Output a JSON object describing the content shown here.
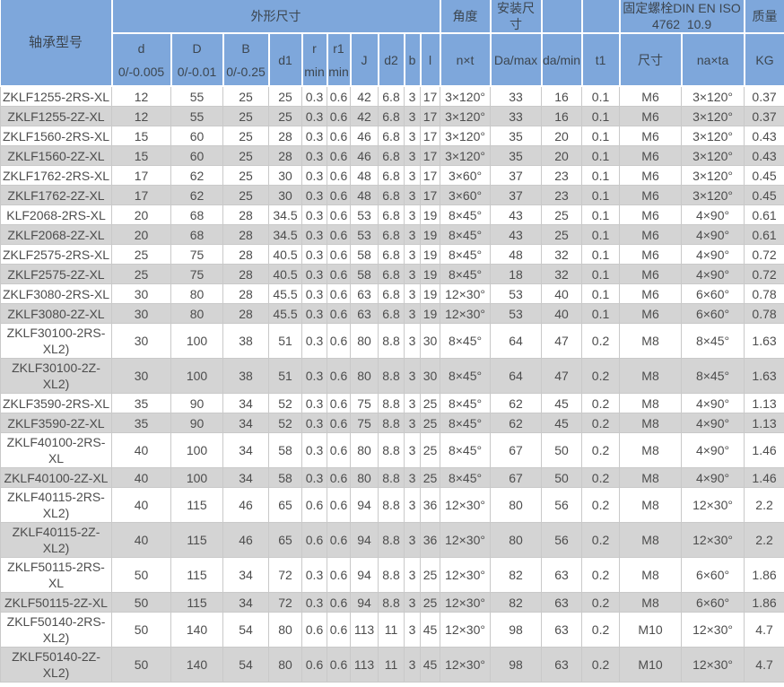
{
  "colors": {
    "header_bg": "#7EA7DB",
    "header_text": "#3C4650",
    "body_text": "#4D4D4D",
    "alt_row_bg": "#D4D4D4",
    "border_light": "#C9C9C9",
    "white": "#FFFFFF"
  },
  "table": {
    "header": {
      "model": "轴承型号",
      "dims_group": "外形尺寸",
      "angle_group": "角度",
      "mount_group": "安装尺寸",
      "blank1": "",
      "blank2": "",
      "bolt_group": "固定螺栓DIN EN ISO\n4762  10.9",
      "mass_group": "质量",
      "sub": [
        "d\n0/-0.005",
        "D\n0/-0.01",
        "B\n0/-0.25",
        "d1",
        "r\nmin",
        "r1\nmin",
        "J",
        "d2",
        "b",
        "l",
        "n×t",
        "Da/max",
        "da/min",
        "t1",
        "尺寸",
        "na×ta",
        "KG"
      ]
    },
    "rows": [
      [
        "ZKLF1255-2RS-XL",
        "12",
        "55",
        "25",
        "25",
        "0.3",
        "0.6",
        "42",
        "6.8",
        "3",
        "17",
        "3×120°",
        "33",
        "16",
        "0.1",
        "M6",
        "3×120°",
        "0.37"
      ],
      [
        "ZKLF1255-2Z-XL",
        "12",
        "55",
        "25",
        "25",
        "0.3",
        "0.6",
        "42",
        "6.8",
        "3",
        "17",
        "3×120°",
        "33",
        "16",
        "0.1",
        "M6",
        "3×120°",
        "0.37"
      ],
      [
        "ZKLF1560-2RS-XL",
        "15",
        "60",
        "25",
        "28",
        "0.3",
        "0.6",
        "46",
        "6.8",
        "3",
        "17",
        "3×120°",
        "35",
        "20",
        "0.1",
        "M6",
        "3×120°",
        "0.43"
      ],
      [
        "ZKLF1560-2Z-XL",
        "15",
        "60",
        "25",
        "28",
        "0.3",
        "0.6",
        "46",
        "6.8",
        "3",
        "17",
        "3×120°",
        "35",
        "20",
        "0.1",
        "M6",
        "3×120°",
        "0.43"
      ],
      [
        "ZKLF1762-2RS-XL",
        "17",
        "62",
        "25",
        "30",
        "0.3",
        "0.6",
        "48",
        "6.8",
        "3",
        "17",
        "3×60°",
        "37",
        "23",
        "0.1",
        "M6",
        "3×120°",
        "0.45"
      ],
      [
        "ZKLF1762-2Z-XL",
        "17",
        "62",
        "25",
        "30",
        "0.3",
        "0.6",
        "48",
        "6.8",
        "3",
        "17",
        "3×60°",
        "37",
        "23",
        "0.1",
        "M6",
        "3×120°",
        "0.45"
      ],
      [
        "KLF2068-2RS-XL",
        "20",
        "68",
        "28",
        "34.5",
        "0.3",
        "0.6",
        "53",
        "6.8",
        "3",
        "19",
        "8×45°",
        "43",
        "25",
        "0.1",
        "M6",
        "4×90°",
        "0.61"
      ],
      [
        "ZKLF2068-2Z-XL",
        "20",
        "68",
        "28",
        "34.5",
        "0.3",
        "0.6",
        "53",
        "6.8",
        "3",
        "19",
        "8×45°",
        "43",
        "25",
        "0.1",
        "M6",
        "4×90°",
        "0.61"
      ],
      [
        "ZKLF2575-2RS-XL",
        "25",
        "75",
        "28",
        "40.5",
        "0.3",
        "0.6",
        "58",
        "6.8",
        "3",
        "19",
        "8×45°",
        "48",
        "32",
        "0.1",
        "M6",
        "4×90°",
        "0.72"
      ],
      [
        "ZKLF2575-2Z-XL",
        "25",
        "75",
        "28",
        "40.5",
        "0.3",
        "0.6",
        "58",
        "6.8",
        "3",
        "19",
        "8×45°",
        "18",
        "32",
        "0.1",
        "M6",
        "4×90°",
        "0.72"
      ],
      [
        "ZKLF3080-2RS-XL",
        "30",
        "80",
        "28",
        "45.5",
        "0.3",
        "0.6",
        "63",
        "6.8",
        "3",
        "19",
        "12×30°",
        "53",
        "40",
        "0.1",
        "M6",
        "6×60°",
        "0.78"
      ],
      [
        "ZKLF3080-2Z-XL",
        "30",
        "80",
        "28",
        "45.5",
        "0.3",
        "0.6",
        "63",
        "6.8",
        "3",
        "19",
        "12×30°",
        "53",
        "40",
        "0.1",
        "M6",
        "6×60°",
        "0.78"
      ],
      [
        "ZKLF30100-2RS-XL2)",
        "30",
        "100",
        "38",
        "51",
        "0.3",
        "0.6",
        "80",
        "8.8",
        "3",
        "30",
        "8×45°",
        "64",
        "47",
        "0.2",
        "M8",
        "8×45°",
        "1.63"
      ],
      [
        "ZKLF30100-2Z-XL2)",
        "30",
        "100",
        "38",
        "51",
        "0.3",
        "0.6",
        "80",
        "8.8",
        "3",
        "30",
        "8×45°",
        "64",
        "47",
        "0.2",
        "M8",
        "8×45°",
        "1.63"
      ],
      [
        "ZKLF3590-2RS-XL",
        "35",
        "90",
        "34",
        "52",
        "0.3",
        "0.6",
        "75",
        "8.8",
        "3",
        "25",
        "8×45°",
        "62",
        "45",
        "0.2",
        "M8",
        "4×90°",
        "1.13"
      ],
      [
        "ZKLF3590-2Z-XL",
        "35",
        "90",
        "34",
        "52",
        "0.3",
        "0.6",
        "75",
        "8.8",
        "3",
        "25",
        "8×45°",
        "62",
        "45",
        "0.2",
        "M8",
        "4×90°",
        "1.13"
      ],
      [
        "ZKLF40100-2RS-XL",
        "40",
        "100",
        "34",
        "58",
        "0.3",
        "0.6",
        "80",
        "8.8",
        "3",
        "25",
        "8×45°",
        "67",
        "50",
        "0.2",
        "M8",
        "4×90°",
        "1.46"
      ],
      [
        "ZKLF40100-2Z-XL",
        "40",
        "100",
        "34",
        "58",
        "0.3",
        "0.6",
        "80",
        "8.8",
        "3",
        "25",
        "8×45°",
        "67",
        "50",
        "0.2",
        "M8",
        "4×90°",
        "1.46"
      ],
      [
        "ZKLF40115-2RS-XL2)",
        "40",
        "115",
        "46",
        "65",
        "0.6",
        "0.6",
        "94",
        "8.8",
        "3",
        "36",
        "12×30°",
        "80",
        "56",
        "0.2",
        "M8",
        "12×30°",
        "2.2"
      ],
      [
        "ZKLF40115-2Z-XL2)",
        "40",
        "115",
        "46",
        "65",
        "0.6",
        "0.6",
        "94",
        "8.8",
        "3",
        "36",
        "12×30°",
        "80",
        "56",
        "0.2",
        "M8",
        "12×30°",
        "2.2"
      ],
      [
        "ZKLF50115-2RS-XL",
        "50",
        "115",
        "34",
        "72",
        "0.3",
        "0.6",
        "94",
        "8.8",
        "3",
        "25",
        "12×30°",
        "82",
        "63",
        "0.2",
        "M8",
        "6×60°",
        "1.86"
      ],
      [
        "ZKLF50115-2Z-XL",
        "50",
        "115",
        "34",
        "72",
        "0.3",
        "0.6",
        "94",
        "8.8",
        "3",
        "25",
        "12×30°",
        "82",
        "63",
        "0.2",
        "M8",
        "6×60°",
        "1.86"
      ],
      [
        "ZKLF50140-2RS-XL2)",
        "50",
        "140",
        "54",
        "80",
        "0.6",
        "0.6",
        "113",
        "11",
        "3",
        "45",
        "12×30°",
        "98",
        "63",
        "0.2",
        "M10",
        "12×30°",
        "4.7"
      ],
      [
        "ZKLF50140-2Z-XL2)",
        "50",
        "140",
        "54",
        "80",
        "0.6",
        "0.6",
        "113",
        "11",
        "3",
        "45",
        "12×30°",
        "98",
        "63",
        "0.2",
        "M10",
        "12×30°",
        "4.7"
      ]
    ]
  }
}
